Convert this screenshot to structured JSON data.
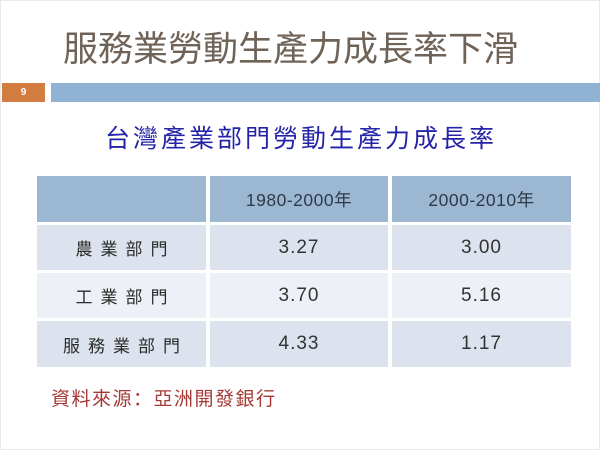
{
  "slide": {
    "title": "服務業勞動生產力成長率下滑",
    "page_number": "9",
    "subtitle": "台灣產業部門勞動生產力成長率",
    "source_note": "資料來源：亞洲開發銀行"
  },
  "table": {
    "columns": [
      "",
      "1980-2000年",
      "2000-2010年"
    ],
    "rows": [
      {
        "label": "農業部門",
        "values": [
          "3.27",
          "3.00"
        ]
      },
      {
        "label": "工業部門",
        "values": [
          "3.70",
          "5.16"
        ]
      },
      {
        "label": "服務業部門",
        "values": [
          "4.33",
          "1.17"
        ]
      }
    ]
  },
  "colors": {
    "title_text": "#6f6257",
    "subtitle_text": "#2424a8",
    "source_text": "#a53935",
    "page_box_bg": "#d27c42",
    "accent_bar_bg": "#90b2d3",
    "table_header_bg": "#9cb7d1",
    "table_row_odd_bg": "#dce3ee",
    "table_row_even_bg": "#edf0f6"
  }
}
